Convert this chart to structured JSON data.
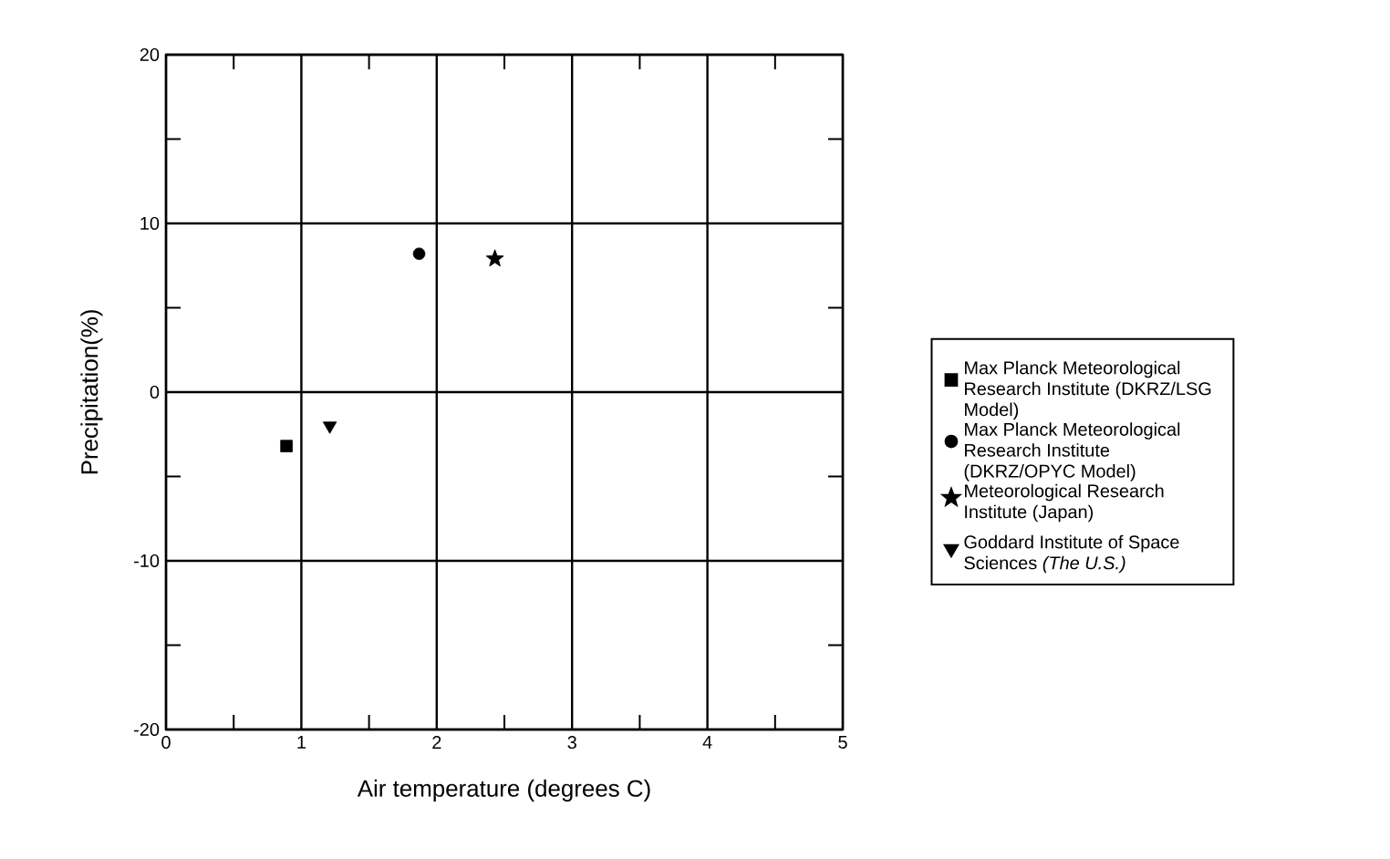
{
  "chart_data": {
    "type": "scatter",
    "xlabel": "Air temperature (degrees C)",
    "ylabel": "Precipitation(%)",
    "xlim": [
      0,
      5
    ],
    "ylim": [
      -20,
      20
    ],
    "xticks": [
      0,
      1,
      2,
      3,
      4,
      5
    ],
    "yticks": [
      -20,
      -10,
      0,
      10,
      20
    ],
    "grid": true,
    "legend": "right",
    "series": [
      {
        "name": "Max Planck Meteorological Research Institute (DKRZ/LSG Model)",
        "color": "#000000",
        "marker": "square",
        "x": [
          0.89
        ],
        "values": [
          -3.2
        ]
      },
      {
        "name": "Max Planck Meteorological Research Institute (DKRZ/OPYC Model)",
        "color": "#000000",
        "marker": "circle",
        "x": [
          1.87
        ],
        "values": [
          8.2
        ]
      },
      {
        "name": "Meteorological Research Institute (Japan)",
        "color": "#000000",
        "marker": "star",
        "x": [
          2.43
        ],
        "values": [
          7.9
        ]
      },
      {
        "name": "Goddard Institute of Space Sciences *(The U.S.)*",
        "color": "#000000",
        "marker": "triangle",
        "x": [
          1.21
        ],
        "values": [
          -2.0
        ]
      }
    ]
  }
}
